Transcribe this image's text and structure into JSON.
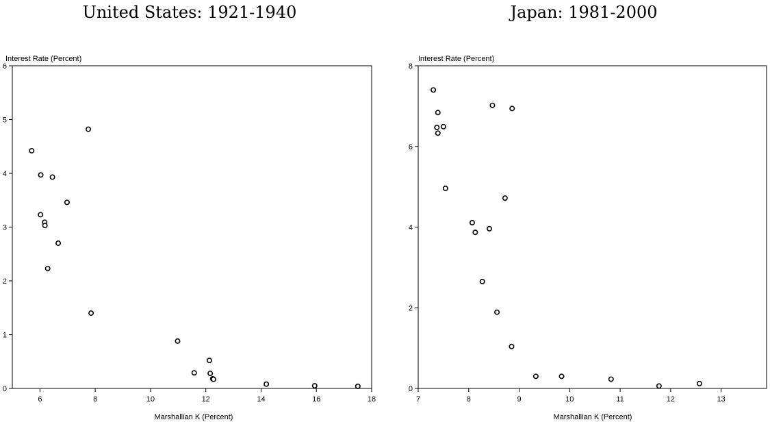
{
  "chart_data": [
    {
      "type": "scatter",
      "title": "United States: 1921-1940",
      "xlabel": "Marshallian K (Percent)",
      "ylabel": "Interest Rate (Percent)",
      "xlim": [
        5,
        18
      ],
      "ylim": [
        0,
        6
      ],
      "xticks": [
        6,
        8,
        10,
        12,
        14,
        16,
        18
      ],
      "yticks": [
        0,
        1,
        2,
        3,
        4,
        5,
        6
      ],
      "grid": false,
      "points": [
        {
          "x": 5.7,
          "y": 4.42
        },
        {
          "x": 6.03,
          "y": 3.97
        },
        {
          "x": 6.45,
          "y": 3.93
        },
        {
          "x": 6.98,
          "y": 3.46
        },
        {
          "x": 6.02,
          "y": 3.23
        },
        {
          "x": 6.17,
          "y": 3.09
        },
        {
          "x": 6.18,
          "y": 3.03
        },
        {
          "x": 6.66,
          "y": 2.7
        },
        {
          "x": 6.28,
          "y": 2.23
        },
        {
          "x": 7.75,
          "y": 4.82
        },
        {
          "x": 7.85,
          "y": 1.4
        },
        {
          "x": 10.98,
          "y": 0.88
        },
        {
          "x": 12.13,
          "y": 0.52
        },
        {
          "x": 11.58,
          "y": 0.29
        },
        {
          "x": 12.16,
          "y": 0.28
        },
        {
          "x": 12.25,
          "y": 0.18
        },
        {
          "x": 12.28,
          "y": 0.17
        },
        {
          "x": 14.19,
          "y": 0.08
        },
        {
          "x": 15.94,
          "y": 0.05
        },
        {
          "x": 17.5,
          "y": 0.04
        }
      ]
    },
    {
      "type": "scatter",
      "title": "Japan: 1981-2000",
      "xlabel": "Marshallian K (Percent)",
      "ylabel": "Interest Rate (Percent)",
      "xlim": [
        7,
        13.9
      ],
      "ylim": [
        0,
        8
      ],
      "xticks": [
        7,
        8,
        9,
        10,
        11,
        12,
        13
      ],
      "yticks": [
        0,
        2,
        4,
        6,
        8
      ],
      "grid": false,
      "points": [
        {
          "x": 7.3,
          "y": 7.4
        },
        {
          "x": 7.39,
          "y": 6.84
        },
        {
          "x": 7.37,
          "y": 6.47
        },
        {
          "x": 7.39,
          "y": 6.33
        },
        {
          "x": 7.5,
          "y": 6.49
        },
        {
          "x": 7.54,
          "y": 4.96
        },
        {
          "x": 8.47,
          "y": 7.02
        },
        {
          "x": 8.86,
          "y": 6.94
        },
        {
          "x": 8.72,
          "y": 4.72
        },
        {
          "x": 8.07,
          "y": 4.11
        },
        {
          "x": 8.13,
          "y": 3.87
        },
        {
          "x": 8.41,
          "y": 3.96
        },
        {
          "x": 8.27,
          "y": 2.65
        },
        {
          "x": 8.56,
          "y": 1.89
        },
        {
          "x": 8.85,
          "y": 1.04
        },
        {
          "x": 9.33,
          "y": 0.3
        },
        {
          "x": 9.84,
          "y": 0.3
        },
        {
          "x": 10.82,
          "y": 0.23
        },
        {
          "x": 11.77,
          "y": 0.06
        },
        {
          "x": 12.57,
          "y": 0.12
        }
      ]
    }
  ]
}
